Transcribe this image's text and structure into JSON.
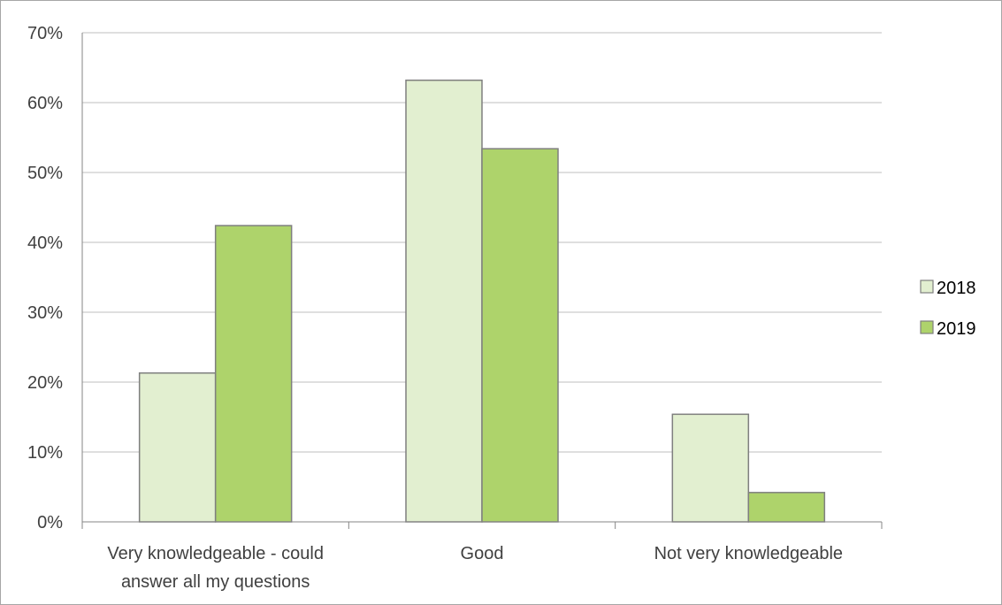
{
  "chart_data": {
    "type": "bar",
    "title": "",
    "xlabel": "",
    "ylabel": "",
    "ylim": [
      0,
      70
    ],
    "yticks": [
      "0%",
      "10%",
      "20%",
      "30%",
      "40%",
      "50%",
      "60%",
      "70%"
    ],
    "categories": [
      [
        "Very knowledgeable - could",
        "answer all my questions"
      ],
      [
        "Good"
      ],
      [
        "Not very knowledgeable"
      ]
    ],
    "series": [
      {
        "name": "2018",
        "values": [
          21.3,
          63.2,
          15.4
        ],
        "color": "#e2efd0"
      },
      {
        "name": "2019",
        "values": [
          42.4,
          53.4,
          4.2
        ],
        "color": "#aed36b"
      }
    ],
    "grid": true,
    "legend_position": "right"
  }
}
